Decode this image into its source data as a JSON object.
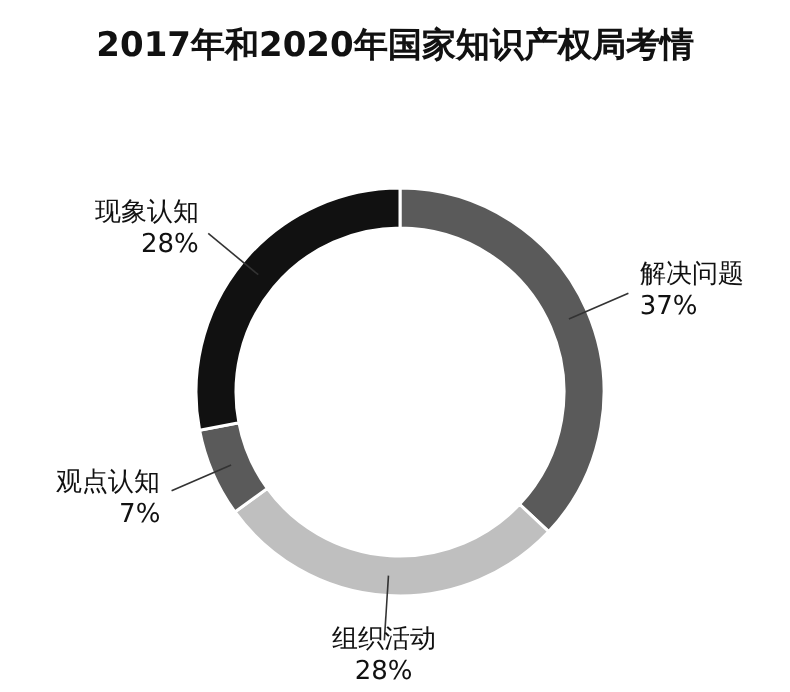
{
  "chart_data": {
    "type": "donut",
    "title": "2017年和2020年国家知识产权局考情",
    "categories": [
      "解决问题",
      "组织活动",
      "观点认知",
      "现象认知"
    ],
    "values": [
      37,
      28,
      7,
      28
    ],
    "value_labels": [
      "37%",
      "28%",
      "7%",
      "28%"
    ],
    "colors": [
      "#5a5a5a",
      "#bfbfbf",
      "#5a5a5a",
      "#111111"
    ]
  }
}
